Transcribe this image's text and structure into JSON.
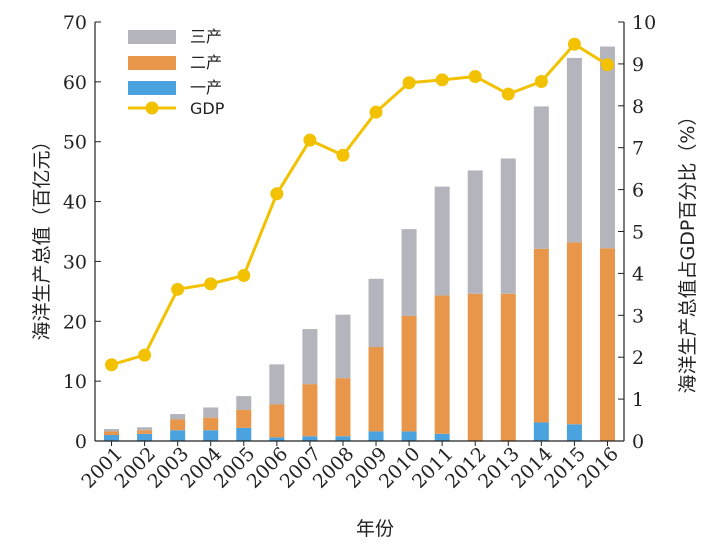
{
  "chart_data": {
    "type": "bar",
    "stacked": true,
    "categories": [
      "2001",
      "2002",
      "2003",
      "2004",
      "2005",
      "2006",
      "2007",
      "2008",
      "2009",
      "2010",
      "2011",
      "2012",
      "2013",
      "2014",
      "2015",
      "2016"
    ],
    "series": [
      {
        "name": "一产",
        "axis": "left",
        "color": "#4aa3df",
        "values": [
          1.0,
          1.2,
          1.8,
          1.8,
          2.2,
          0.6,
          0.8,
          0.8,
          1.6,
          1.6,
          1.2,
          0.0,
          0.0,
          3.1,
          2.8,
          0.0
        ]
      },
      {
        "name": "二产",
        "axis": "left",
        "color": "#e8964a",
        "values": [
          0.6,
          0.6,
          1.8,
          2.1,
          3.0,
          5.5,
          8.7,
          9.7,
          14.1,
          19.3,
          23.1,
          24.6,
          24.6,
          29.0,
          30.4,
          32.2
        ]
      },
      {
        "name": "三产",
        "axis": "left",
        "color": "#b4b4bc",
        "values": [
          0.4,
          0.5,
          0.9,
          1.7,
          2.3,
          6.7,
          9.2,
          10.6,
          11.4,
          14.5,
          18.2,
          20.6,
          22.6,
          23.8,
          30.8,
          33.7
        ]
      },
      {
        "name": "GDP",
        "axis": "right",
        "type": "line",
        "color": "#f2c200",
        "values": [
          1.82,
          2.05,
          3.62,
          3.75,
          3.95,
          5.9,
          7.18,
          6.82,
          7.85,
          8.55,
          8.62,
          8.7,
          8.28,
          8.58,
          9.47,
          8.98
        ]
      }
    ],
    "left_axis": {
      "label": "海洋生产总值（百亿元）",
      "ylim": [
        0,
        70
      ],
      "ticks": [
        "0",
        "10",
        "20",
        "30",
        "40",
        "50",
        "60",
        "70"
      ]
    },
    "right_axis": {
      "label": "海洋生产总值占GDP百分比（%）",
      "ylim": [
        0,
        10
      ],
      "ticks": [
        "0",
        "1",
        "2",
        "3",
        "4",
        "5",
        "6",
        "7",
        "8",
        "9",
        "10"
      ]
    },
    "xlabel": "年份",
    "legend": {
      "position": "top-left",
      "order": [
        "三产",
        "二产",
        "一产",
        "GDP"
      ]
    },
    "grid": false
  }
}
